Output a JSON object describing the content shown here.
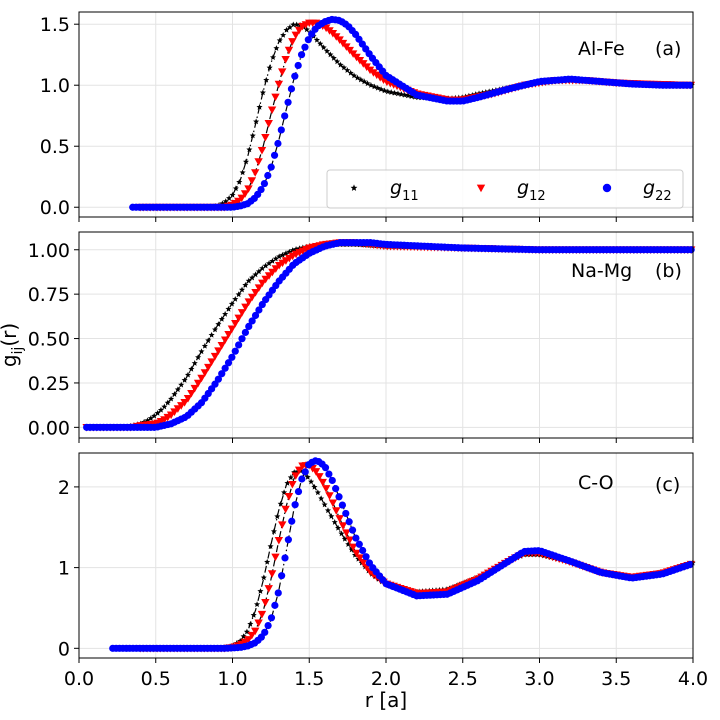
{
  "chart_data": [
    {
      "type": "line",
      "panel_label": "(a)",
      "system_label": "Al-Fe",
      "xlabel": "",
      "ylabel": "",
      "xlim": [
        0.0,
        4.0
      ],
      "ylim": [
        -0.08,
        1.6
      ],
      "yticks": [
        0.0,
        0.5,
        1.0,
        1.5
      ],
      "ytick_labels": [
        "0.0",
        "0.5",
        "1.0",
        "1.5"
      ],
      "grid": true,
      "legend_location": "lower-right",
      "legend": [
        {
          "name": "g11",
          "base": "g",
          "sub": "11",
          "color": "#000000",
          "marker": "star"
        },
        {
          "name": "g12",
          "base": "g",
          "sub": "12",
          "color": "#ff0000",
          "marker": "triangle-down"
        },
        {
          "name": "g22",
          "base": "g",
          "sub": "22",
          "color": "#0000ff",
          "marker": "circle"
        }
      ],
      "series": [
        {
          "name": "g11",
          "x": [
            0.45,
            0.6,
            0.75,
            0.85,
            0.9,
            0.95,
            1.0,
            1.05,
            1.1,
            1.15,
            1.2,
            1.25,
            1.3,
            1.35,
            1.4,
            1.45,
            1.5,
            1.55,
            1.6,
            1.7,
            1.8,
            1.9,
            2.0,
            2.2,
            2.4,
            2.5,
            2.6,
            2.8,
            3.0,
            3.2,
            3.4,
            3.6,
            3.8,
            4.0
          ],
          "y": [
            0.0,
            0.0,
            0.0,
            0.0,
            0.01,
            0.04,
            0.1,
            0.22,
            0.42,
            0.68,
            0.95,
            1.18,
            1.35,
            1.45,
            1.5,
            1.49,
            1.44,
            1.37,
            1.3,
            1.17,
            1.07,
            1.0,
            0.95,
            0.9,
            0.89,
            0.9,
            0.93,
            0.98,
            1.02,
            1.04,
            1.03,
            1.01,
            1.0,
            1.0
          ]
        },
        {
          "name": "g12",
          "x": [
            0.4,
            0.6,
            0.8,
            0.95,
            1.0,
            1.05,
            1.1,
            1.15,
            1.2,
            1.25,
            1.3,
            1.35,
            1.4,
            1.45,
            1.5,
            1.55,
            1.6,
            1.65,
            1.7,
            1.8,
            1.9,
            2.0,
            2.2,
            2.4,
            2.5,
            2.7,
            2.9,
            3.1,
            3.3,
            3.5,
            3.7,
            4.0
          ],
          "y": [
            0.0,
            0.0,
            0.0,
            0.0,
            0.02,
            0.06,
            0.14,
            0.29,
            0.5,
            0.76,
            1.0,
            1.23,
            1.39,
            1.48,
            1.51,
            1.51,
            1.48,
            1.43,
            1.37,
            1.24,
            1.12,
            1.03,
            0.93,
            0.88,
            0.88,
            0.93,
            1.0,
            1.04,
            1.04,
            1.02,
            1.01,
            1.0
          ]
        },
        {
          "name": "g22",
          "x": [
            0.35,
            0.5,
            0.7,
            0.9,
            1.0,
            1.05,
            1.1,
            1.15,
            1.2,
            1.25,
            1.3,
            1.35,
            1.4,
            1.45,
            1.5,
            1.55,
            1.6,
            1.65,
            1.7,
            1.75,
            1.8,
            1.9,
            2.0,
            2.2,
            2.4,
            2.5,
            2.6,
            2.8,
            3.0,
            3.2,
            3.4,
            3.6,
            3.8,
            4.0
          ],
          "y": [
            0.0,
            0.0,
            0.0,
            0.0,
            0.0,
            0.01,
            0.03,
            0.08,
            0.17,
            0.32,
            0.54,
            0.8,
            1.05,
            1.25,
            1.39,
            1.48,
            1.52,
            1.54,
            1.53,
            1.49,
            1.42,
            1.24,
            1.08,
            0.92,
            0.87,
            0.87,
            0.9,
            0.97,
            1.03,
            1.05,
            1.03,
            1.01,
            1.0,
            1.0
          ]
        }
      ]
    },
    {
      "type": "line",
      "panel_label": "(b)",
      "system_label": "Na-Mg",
      "xlabel": "",
      "ylabel": "g_ij(r)",
      "xlim": [
        0.0,
        4.0
      ],
      "ylim": [
        -0.06,
        1.1
      ],
      "yticks": [
        0.0,
        0.25,
        0.5,
        0.75,
        1.0
      ],
      "ytick_labels": [
        "0.00",
        "0.25",
        "0.50",
        "0.75",
        "1.00"
      ],
      "grid": true,
      "series": [
        {
          "name": "g11",
          "x": [
            0.05,
            0.2,
            0.3,
            0.35,
            0.4,
            0.45,
            0.5,
            0.55,
            0.6,
            0.7,
            0.8,
            0.9,
            1.0,
            1.1,
            1.2,
            1.3,
            1.4,
            1.5,
            1.6,
            1.7,
            1.8,
            2.0,
            2.5,
            3.0,
            3.5,
            4.0
          ],
          "y": [
            0.0,
            0.0,
            0.0,
            0.01,
            0.02,
            0.04,
            0.07,
            0.11,
            0.16,
            0.28,
            0.43,
            0.57,
            0.7,
            0.82,
            0.9,
            0.96,
            1.0,
            1.02,
            1.03,
            1.03,
            1.03,
            1.02,
            1.01,
            1.0,
            1.0,
            1.0
          ]
        },
        {
          "name": "g12",
          "x": [
            0.05,
            0.2,
            0.35,
            0.4,
            0.5,
            0.55,
            0.6,
            0.7,
            0.8,
            0.9,
            1.0,
            1.1,
            1.2,
            1.3,
            1.4,
            1.5,
            1.6,
            1.7,
            1.8,
            1.9,
            2.0,
            2.5,
            3.0,
            3.5,
            4.0
          ],
          "y": [
            0.0,
            0.0,
            0.0,
            0.01,
            0.02,
            0.04,
            0.07,
            0.15,
            0.28,
            0.42,
            0.56,
            0.7,
            0.82,
            0.91,
            0.97,
            1.01,
            1.03,
            1.04,
            1.04,
            1.03,
            1.02,
            1.01,
            1.0,
            1.0,
            1.0
          ]
        },
        {
          "name": "g22",
          "x": [
            0.05,
            0.2,
            0.4,
            0.5,
            0.55,
            0.6,
            0.7,
            0.8,
            0.9,
            1.0,
            1.1,
            1.2,
            1.3,
            1.4,
            1.5,
            1.6,
            1.7,
            1.8,
            1.9,
            2.0,
            2.5,
            3.0,
            3.5,
            4.0
          ],
          "y": [
            0.0,
            0.0,
            0.0,
            0.0,
            0.01,
            0.02,
            0.06,
            0.14,
            0.26,
            0.4,
            0.56,
            0.7,
            0.82,
            0.92,
            0.98,
            1.02,
            1.04,
            1.04,
            1.04,
            1.03,
            1.01,
            1.0,
            1.0,
            1.0
          ]
        }
      ]
    },
    {
      "type": "line",
      "panel_label": "(c)",
      "system_label": "C-O",
      "xlabel": "r [a]",
      "ylabel": "",
      "xlim": [
        0.0,
        4.0
      ],
      "xticks": [
        0.0,
        0.5,
        1.0,
        1.5,
        2.0,
        2.5,
        3.0,
        3.5,
        4.0
      ],
      "xtick_labels": [
        "0.0",
        "0.5",
        "1.0",
        "1.5",
        "2.0",
        "2.5",
        "3.0",
        "3.5",
        "4.0"
      ],
      "ylim": [
        -0.12,
        2.42
      ],
      "yticks": [
        0,
        1,
        2
      ],
      "ytick_labels": [
        "0",
        "1",
        "2"
      ],
      "grid": true,
      "series": [
        {
          "name": "g11",
          "x": [
            0.5,
            0.7,
            0.9,
            0.95,
            1.0,
            1.05,
            1.1,
            1.15,
            1.2,
            1.25,
            1.3,
            1.35,
            1.4,
            1.45,
            1.5,
            1.55,
            1.6,
            1.7,
            1.8,
            1.9,
            2.0,
            2.2,
            2.4,
            2.6,
            2.8,
            2.9,
            3.0,
            3.2,
            3.4,
            3.6,
            3.8,
            4.0
          ],
          "y": [
            0.0,
            0.0,
            0.0,
            0.01,
            0.03,
            0.09,
            0.22,
            0.47,
            0.84,
            1.28,
            1.7,
            2.02,
            2.18,
            2.2,
            2.1,
            1.95,
            1.78,
            1.45,
            1.15,
            0.93,
            0.79,
            0.7,
            0.73,
            0.88,
            1.08,
            1.16,
            1.16,
            1.07,
            0.94,
            0.88,
            0.94,
            1.06
          ]
        },
        {
          "name": "g12",
          "x": [
            0.4,
            0.7,
            0.95,
            1.0,
            1.05,
            1.1,
            1.15,
            1.2,
            1.25,
            1.3,
            1.35,
            1.4,
            1.45,
            1.5,
            1.55,
            1.6,
            1.65,
            1.7,
            1.8,
            1.9,
            2.0,
            2.2,
            2.4,
            2.6,
            2.8,
            2.9,
            3.0,
            3.2,
            3.4,
            3.6,
            3.8,
            4.0
          ],
          "y": [
            0.0,
            0.0,
            0.0,
            0.01,
            0.04,
            0.1,
            0.22,
            0.46,
            0.85,
            1.32,
            1.76,
            2.1,
            2.26,
            2.27,
            2.18,
            2.02,
            1.82,
            1.6,
            1.2,
            0.94,
            0.8,
            0.68,
            0.7,
            0.86,
            1.08,
            1.18,
            1.18,
            1.07,
            0.94,
            0.88,
            0.93,
            1.05
          ]
        },
        {
          "name": "g22",
          "x": [
            0.22,
            0.4,
            0.6,
            0.8,
            0.95,
            1.05,
            1.1,
            1.15,
            1.2,
            1.25,
            1.3,
            1.35,
            1.4,
            1.45,
            1.5,
            1.55,
            1.6,
            1.65,
            1.7,
            1.8,
            1.9,
            2.0,
            2.2,
            2.4,
            2.6,
            2.8,
            2.9,
            3.0,
            3.2,
            3.4,
            3.6,
            3.8,
            4.0
          ],
          "y": [
            0.0,
            0.0,
            0.0,
            0.0,
            0.0,
            0.01,
            0.03,
            0.07,
            0.16,
            0.35,
            0.7,
            1.2,
            1.72,
            2.09,
            2.29,
            2.33,
            2.26,
            2.08,
            1.85,
            1.38,
            1.03,
            0.8,
            0.65,
            0.67,
            0.84,
            1.08,
            1.2,
            1.21,
            1.08,
            0.94,
            0.87,
            0.92,
            1.05
          ]
        }
      ]
    }
  ]
}
